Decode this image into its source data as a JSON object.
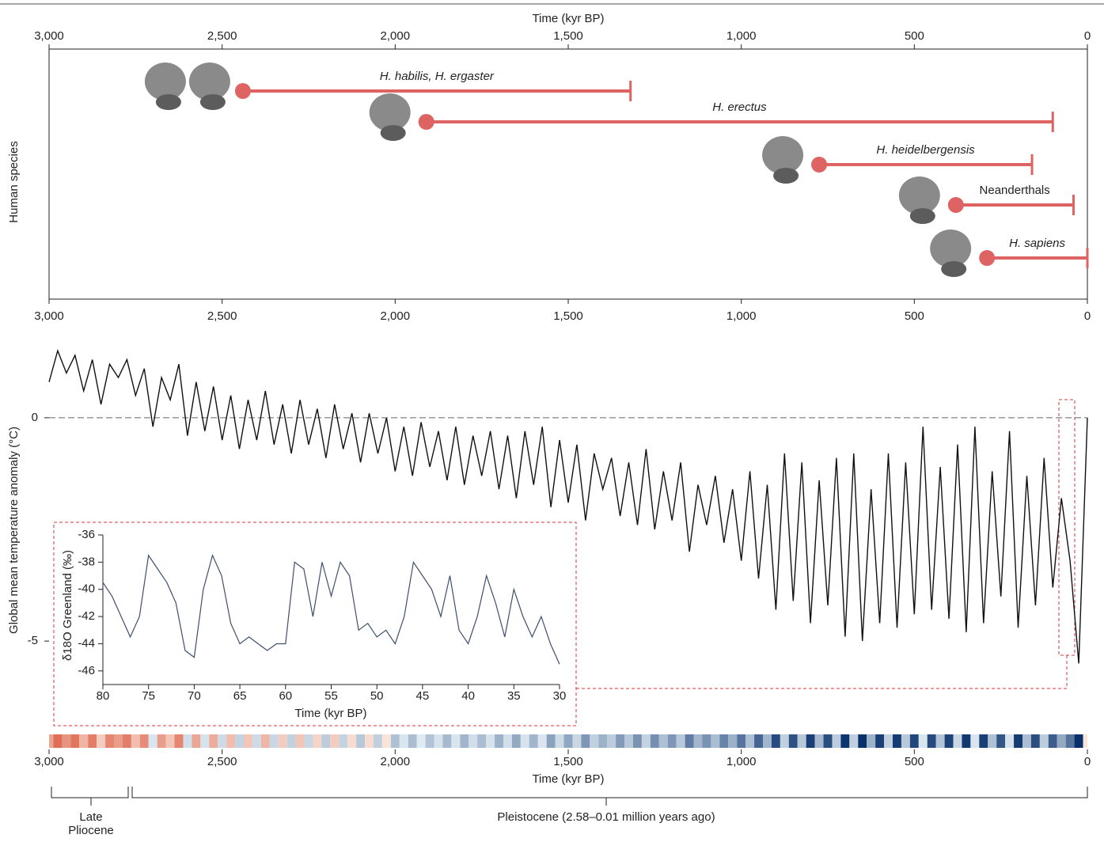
{
  "chart_data": [
    {
      "type": "range",
      "xlabel": "Time (kyr BP)",
      "ylabel": "Human species",
      "categories": [
        "H. habilis, H. ergaster",
        "H. erectus",
        "H. heidelbergensis",
        "Neanderthals",
        "H. sapiens"
      ],
      "start": [
        2440,
        1910,
        775,
        380,
        290
      ],
      "end": [
        1320,
        100,
        160,
        40,
        0
      ],
      "italic": [
        true,
        true,
        true,
        false,
        true
      ],
      "color": "#de6464",
      "xlim": [
        3000,
        0
      ],
      "xticks": [
        {
          "value": 3000,
          "label": "3,000"
        },
        {
          "value": 2500,
          "label": "2,500"
        },
        {
          "value": 2000,
          "label": "2,000"
        },
        {
          "value": 1500,
          "label": "1,500"
        },
        {
          "value": 1000,
          "label": "1,000"
        },
        500,
        0
      ]
    },
    {
      "type": "line",
      "xlabel": "Time (kyr BP)",
      "ylabel": "Global mean temperature anomaly (°C)",
      "x": [
        3000,
        2975,
        2950,
        2925,
        2900,
        2875,
        2850,
        2825,
        2800,
        2775,
        2750,
        2725,
        2700,
        2675,
        2650,
        2625,
        2600,
        2575,
        2550,
        2525,
        2500,
        2475,
        2450,
        2425,
        2400,
        2375,
        2350,
        2325,
        2300,
        2275,
        2250,
        2225,
        2200,
        2175,
        2150,
        2125,
        2100,
        2075,
        2050,
        2025,
        2000,
        1975,
        1950,
        1925,
        1900,
        1875,
        1850,
        1825,
        1800,
        1775,
        1750,
        1725,
        1700,
        1675,
        1650,
        1625,
        1600,
        1575,
        1550,
        1525,
        1500,
        1475,
        1450,
        1425,
        1400,
        1375,
        1350,
        1325,
        1300,
        1275,
        1250,
        1225,
        1200,
        1175,
        1150,
        1125,
        1100,
        1075,
        1050,
        1025,
        1000,
        975,
        950,
        925,
        900,
        875,
        850,
        825,
        800,
        775,
        750,
        725,
        700,
        675,
        650,
        625,
        600,
        575,
        550,
        525,
        500,
        475,
        450,
        425,
        400,
        375,
        350,
        325,
        300,
        275,
        250,
        225,
        200,
        175,
        150,
        125,
        100,
        75,
        50,
        25,
        0
      ],
      "values": [
        0.8,
        1.5,
        1.0,
        1.4,
        0.6,
        1.3,
        0.3,
        1.2,
        0.9,
        1.3,
        0.5,
        1.1,
        -0.2,
        0.9,
        0.4,
        1.2,
        -0.4,
        0.8,
        -0.3,
        0.7,
        -0.5,
        0.5,
        -0.7,
        0.4,
        -0.5,
        0.6,
        -0.6,
        0.3,
        -0.8,
        0.4,
        -0.6,
        0.2,
        -0.9,
        0.3,
        -0.7,
        0.1,
        -1.0,
        0.1,
        -0.8,
        0.0,
        -1.2,
        -0.2,
        -1.3,
        -0.1,
        -1.1,
        -0.3,
        -1.4,
        -0.2,
        -1.5,
        -0.4,
        -1.3,
        -0.3,
        -1.6,
        -0.4,
        -1.8,
        -0.3,
        -1.5,
        -0.2,
        -2.0,
        -0.5,
        -1.9,
        -0.6,
        -2.3,
        -0.8,
        -1.6,
        -0.9,
        -2.2,
        -1.0,
        -2.4,
        -0.7,
        -2.5,
        -1.2,
        -2.3,
        -1.0,
        -3.0,
        -1.5,
        -2.4,
        -1.3,
        -2.8,
        -1.6,
        -3.2,
        -1.2,
        -3.6,
        -1.5,
        -4.3,
        -0.8,
        -4.1,
        -1.0,
        -4.6,
        -1.4,
        -4.2,
        -0.9,
        -4.9,
        -0.8,
        -5.0,
        -1.6,
        -4.6,
        -0.8,
        -4.7,
        -1.0,
        -4.4,
        -0.2,
        -4.3,
        -1.1,
        -4.5,
        -0.6,
        -4.8,
        -0.2,
        -4.6,
        -1.2,
        -4.0,
        -0.3,
        -4.7,
        -1.3,
        -4.2,
        -0.9,
        -3.8,
        -1.8,
        -3.2,
        -5.5,
        0.0
      ],
      "color": "#111111",
      "xlim": [
        3000,
        0
      ],
      "ylim": [
        -7,
        2
      ],
      "xticks": [
        {
          "value": 3000,
          "label": "3,000"
        },
        {
          "value": 2500,
          "label": "2,500"
        },
        {
          "value": 2000,
          "label": "2,000"
        },
        {
          "value": 1500,
          "label": "1,500"
        },
        {
          "value": 1000,
          "label": "1,000"
        },
        500,
        0
      ],
      "yticks": [
        0,
        -5
      ],
      "zero_line": true,
      "color_stripe": true,
      "annotations": [
        "Late Pliocene",
        "Pleistocene (2.58–0.01 million years ago)"
      ]
    },
    {
      "type": "line",
      "xlabel": "Time (kyr BP)",
      "ylabel": "δ18O Greenland (‰)",
      "x": [
        80,
        79,
        78,
        77,
        76,
        75,
        74,
        73,
        72,
        71,
        70,
        69,
        68,
        67,
        66,
        65,
        64,
        63,
        62,
        61,
        60,
        59,
        58,
        57,
        56,
        55,
        54,
        53,
        52,
        51,
        50,
        49,
        48,
        47,
        46,
        45,
        44,
        43,
        42,
        41,
        40,
        39,
        38,
        37,
        36,
        35,
        34,
        33,
        32,
        31,
        30
      ],
      "values": [
        -39.5,
        -40.5,
        -42,
        -43.5,
        -42,
        -37.5,
        -38.5,
        -39.5,
        -41,
        -44.5,
        -45,
        -40,
        -37.5,
        -39,
        -42.5,
        -44,
        -43.5,
        -44,
        -44.5,
        -44,
        -44,
        -38,
        -38.5,
        -42,
        -38,
        -40.5,
        -38,
        -39,
        -43,
        -42.5,
        -43.5,
        -43,
        -44,
        -42,
        -38,
        -39,
        -40,
        -42,
        -39,
        -43,
        -44,
        -42,
        -39,
        -41,
        -43.5,
        -40,
        -42,
        -43.5,
        -42,
        -44,
        -45.5
      ],
      "color": "#3d4f6e",
      "xlim": [
        80,
        30
      ],
      "ylim": [
        -47,
        -36
      ],
      "xticks": [
        80,
        75,
        70,
        65,
        60,
        55,
        50,
        45,
        40,
        35,
        30
      ],
      "yticks": [
        -36,
        -38,
        -40,
        -42,
        -44,
        -46
      ]
    }
  ]
}
